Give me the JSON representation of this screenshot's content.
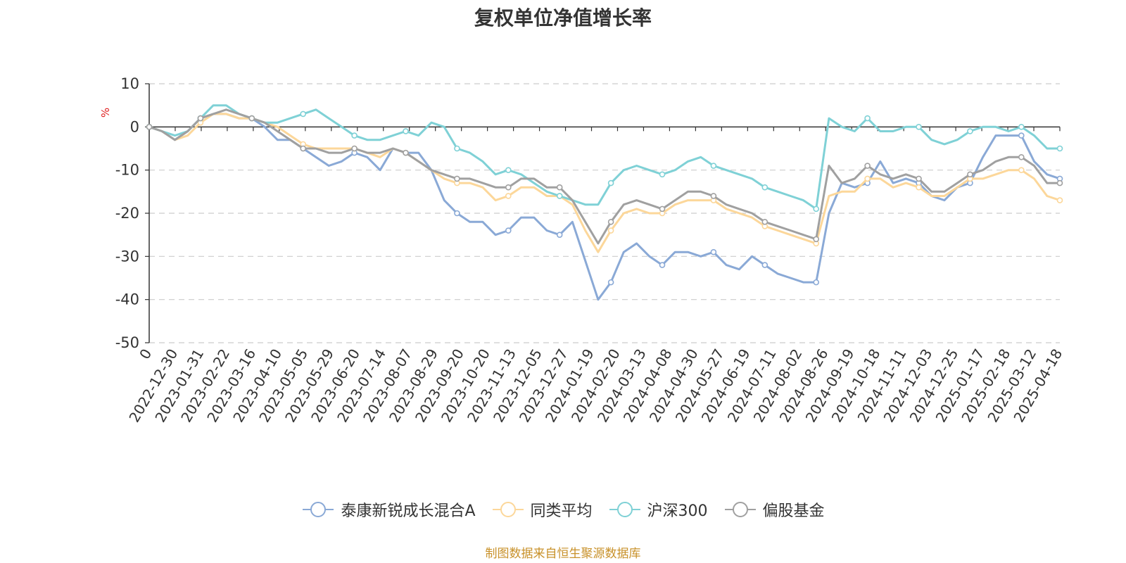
{
  "chart_data": {
    "type": "line",
    "title": "复权单位净值增长率",
    "ylabel": "%",
    "ylim": [
      -50,
      10
    ],
    "yticks": [
      10,
      0,
      -10,
      -20,
      -30,
      -40,
      -50
    ],
    "x_tick_labels": [
      "0",
      "2022-12-30",
      "2023-01-31",
      "2023-02-22",
      "2023-03-16",
      "2023-04-10",
      "2023-05-05",
      "2023-05-29",
      "2023-06-20",
      "2023-07-14",
      "2023-08-07",
      "2023-08-29",
      "2023-09-20",
      "2023-10-20",
      "2023-11-13",
      "2023-12-05",
      "2023-12-27",
      "2024-01-19",
      "2024-02-20",
      "2024-03-13",
      "2024-04-08",
      "2024-04-30",
      "2024-05-27",
      "2024-06-19",
      "2024-07-11",
      "2024-08-02",
      "2024-08-26",
      "2024-09-19",
      "2024-10-18",
      "2024-11-11",
      "2024-12-03",
      "2024-12-25",
      "2025-01-17",
      "2025-02-18",
      "2025-03-12",
      "2025-04-18"
    ],
    "grid": true,
    "legend_position": "bottom",
    "series": [
      {
        "name": "泰康新锐成长混合A",
        "color": "#8aa9d6",
        "values": [
          0,
          -1,
          -3,
          -1,
          2,
          3,
          3,
          2,
          2,
          0,
          -3,
          -3,
          -5,
          -7,
          -9,
          -8,
          -6,
          -7,
          -10,
          -5,
          -6,
          -6,
          -10,
          -17,
          -20,
          -22,
          -22,
          -25,
          -24,
          -21,
          -21,
          -24,
          -25,
          -22,
          -31,
          -40,
          -36,
          -29,
          -27,
          -30,
          -32,
          -29,
          -29,
          -30,
          -29,
          -32,
          -33,
          -30,
          -32,
          -34,
          -35,
          -36,
          -36,
          -20,
          -13,
          -14,
          -13,
          -8,
          -13,
          -12,
          -13,
          -16,
          -17,
          -14,
          -13,
          -7,
          -2,
          -2,
          -2,
          -8,
          -11,
          -12
        ]
      },
      {
        "name": "同类平均",
        "color": "#fcd79a",
        "values": [
          0,
          -1,
          -3,
          -2,
          1,
          3,
          3,
          2,
          2,
          1,
          0,
          -2,
          -4,
          -5,
          -5,
          -5,
          -5,
          -6,
          -7,
          -5,
          -6,
          -8,
          -10,
          -12,
          -13,
          -13,
          -14,
          -17,
          -16,
          -14,
          -14,
          -16,
          -16,
          -18,
          -24,
          -29,
          -24,
          -20,
          -19,
          -20,
          -20,
          -18,
          -17,
          -17,
          -17,
          -19,
          -20,
          -21,
          -23,
          -24,
          -25,
          -26,
          -27,
          -16,
          -15,
          -15,
          -12,
          -12,
          -14,
          -13,
          -14,
          -16,
          -16,
          -14,
          -12,
          -12,
          -11,
          -10,
          -10,
          -12,
          -16,
          -17
        ]
      },
      {
        "name": "沪深300",
        "color": "#7fd1d6",
        "values": [
          0,
          -1,
          -2,
          -1,
          2,
          5,
          5,
          3,
          2,
          1,
          1,
          2,
          3,
          4,
          2,
          0,
          -2,
          -3,
          -3,
          -2,
          -1,
          -2,
          1,
          0,
          -5,
          -6,
          -8,
          -11,
          -10,
          -11,
          -13,
          -15,
          -16,
          -17,
          -18,
          -18,
          -13,
          -10,
          -9,
          -10,
          -11,
          -10,
          -8,
          -7,
          -9,
          -10,
          -11,
          -12,
          -14,
          -15,
          -16,
          -17,
          -19,
          2,
          0,
          -1,
          2,
          -1,
          -1,
          0,
          0,
          -3,
          -4,
          -3,
          -1,
          0,
          0,
          -1,
          0,
          -2,
          -5,
          -5
        ]
      },
      {
        "name": "偏股基金",
        "color": "#a0a0a0",
        "values": [
          0,
          -1,
          -3,
          -1,
          2,
          3,
          4,
          3,
          2,
          1,
          -1,
          -3,
          -5,
          -5,
          -6,
          -6,
          -5,
          -6,
          -6,
          -5,
          -6,
          -8,
          -10,
          -11,
          -12,
          -12,
          -13,
          -14,
          -14,
          -12,
          -12,
          -14,
          -14,
          -17,
          -22,
          -27,
          -22,
          -18,
          -17,
          -18,
          -19,
          -17,
          -15,
          -15,
          -16,
          -18,
          -19,
          -20,
          -22,
          -23,
          -24,
          -25,
          -26,
          -9,
          -13,
          -12,
          -9,
          -11,
          -12,
          -11,
          -12,
          -15,
          -15,
          -13,
          -11,
          -10,
          -8,
          -7,
          -7,
          -9,
          -13,
          -13
        ]
      }
    ]
  },
  "legend": [
    {
      "label": "泰康新锐成长混合A",
      "color": "#8aa9d6"
    },
    {
      "label": "同类平均",
      "color": "#fcd79a"
    },
    {
      "label": "沪深300",
      "color": "#7fd1d6"
    },
    {
      "label": "偏股基金",
      "color": "#a0a0a0"
    }
  ],
  "source_note": "制图数据来自恒生聚源数据库"
}
